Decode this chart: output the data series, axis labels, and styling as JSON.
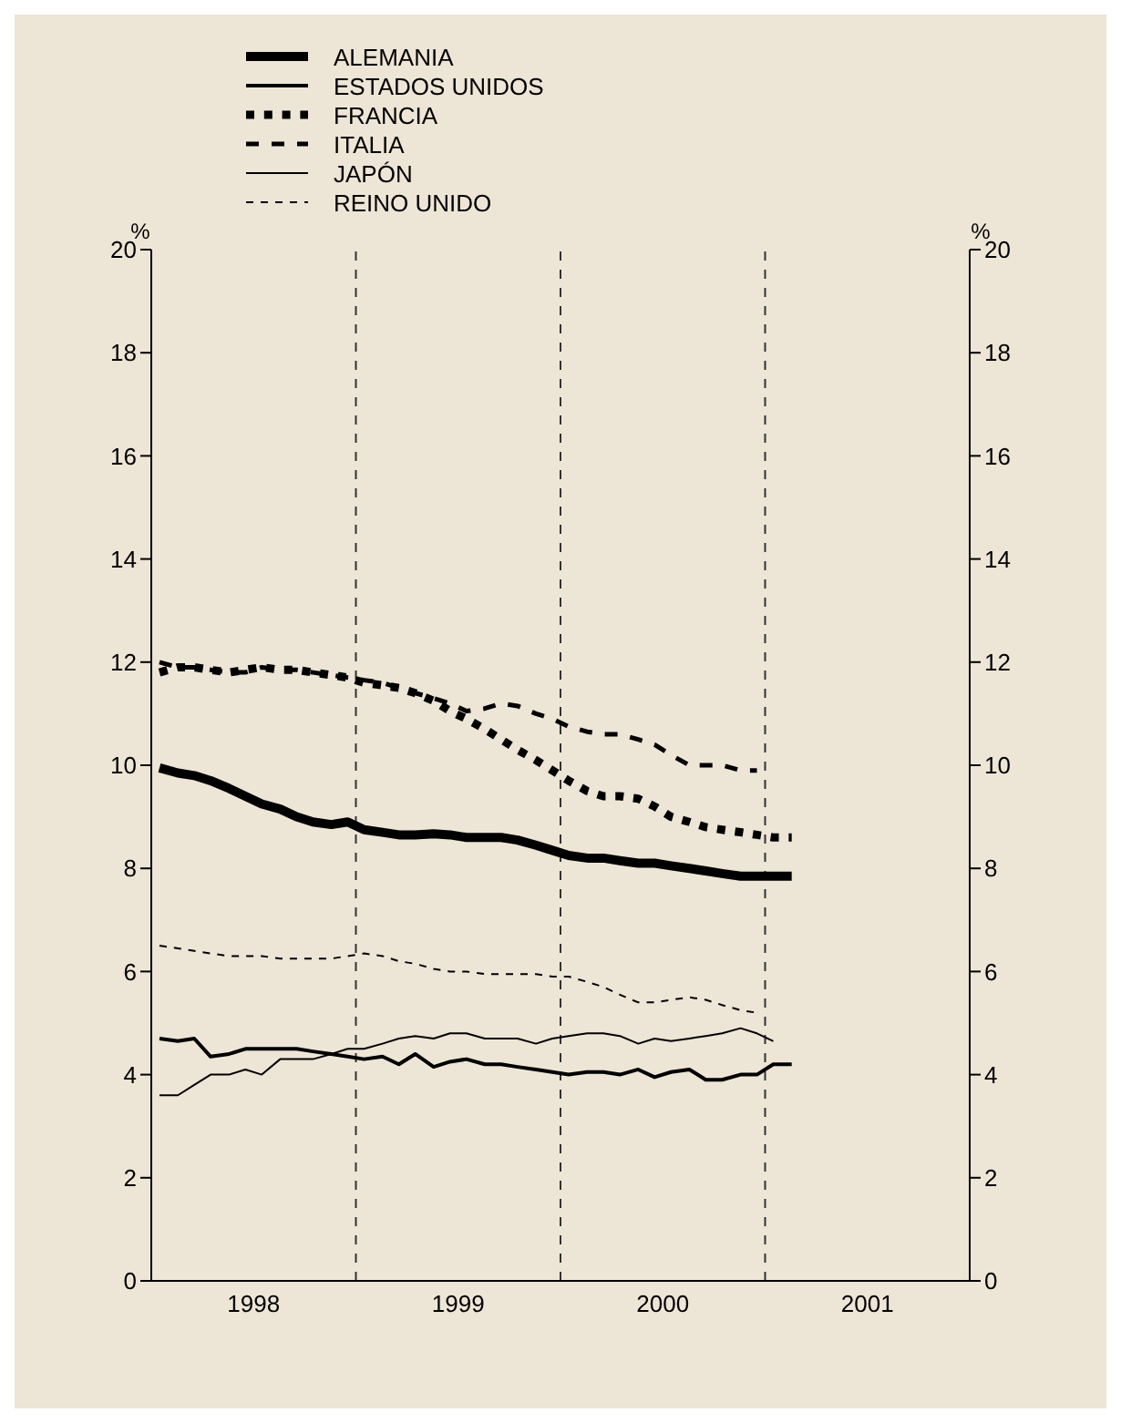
{
  "chart_data": {
    "type": "line",
    "ylabel": "%",
    "y2label": "%",
    "x": [
      1998.04,
      1998.13,
      1998.21,
      1998.29,
      1998.38,
      1998.46,
      1998.54,
      1998.63,
      1998.71,
      1998.79,
      1998.88,
      1998.96,
      1999.04,
      1999.13,
      1999.21,
      1999.29,
      1999.38,
      1999.46,
      1999.54,
      1999.63,
      1999.71,
      1999.79,
      1999.88,
      1999.96,
      2000.04,
      2000.13,
      2000.21,
      2000.29,
      2000.38,
      2000.46,
      2000.54,
      2000.63,
      2000.71,
      2000.79,
      2000.88,
      2000.96,
      2001.04,
      2001.13
    ],
    "series": [
      {
        "name": "ALEMANIA",
        "color": "#000000",
        "line_style": "solid",
        "values": [
          9.95,
          9.85,
          9.8,
          9.7,
          9.55,
          9.4,
          9.25,
          9.15,
          9.0,
          8.9,
          8.85,
          8.9,
          8.75,
          8.7,
          8.65,
          8.65,
          8.67,
          8.65,
          8.6,
          8.6,
          8.6,
          8.55,
          8.45,
          8.35,
          8.25,
          8.2,
          8.2,
          8.15,
          8.1,
          8.1,
          8.05,
          8.0,
          7.95,
          7.9,
          7.85,
          7.85,
          7.85,
          7.85
        ]
      },
      {
        "name": "ESTADOS UNIDOS",
        "color": "#000000",
        "line_style": "solid",
        "values": [
          4.7,
          4.65,
          4.7,
          4.35,
          4.4,
          4.5,
          4.5,
          4.5,
          4.5,
          4.45,
          4.4,
          4.35,
          4.3,
          4.35,
          4.2,
          4.4,
          4.15,
          4.25,
          4.3,
          4.2,
          4.2,
          4.15,
          4.1,
          4.05,
          4.0,
          4.05,
          4.05,
          4.0,
          4.1,
          3.95,
          4.05,
          4.1,
          3.9,
          3.9,
          4.0,
          4.0,
          4.2,
          4.2
        ]
      },
      {
        "name": "FRANCIA",
        "color": "#000000",
        "line_style": "dotted",
        "values": [
          11.8,
          11.9,
          11.9,
          11.85,
          11.8,
          11.85,
          11.9,
          11.85,
          11.85,
          11.8,
          11.75,
          11.7,
          11.6,
          11.55,
          11.5,
          11.4,
          11.25,
          11.05,
          10.9,
          10.7,
          10.5,
          10.3,
          10.1,
          9.9,
          9.7,
          9.5,
          9.4,
          9.4,
          9.35,
          9.2,
          9.0,
          8.9,
          8.8,
          8.75,
          8.7,
          8.65,
          8.6,
          8.6
        ]
      },
      {
        "name": "ITALIA",
        "color": "#000000",
        "line_style": "dashed",
        "values": [
          12.0,
          11.9,
          11.9,
          11.85,
          11.8,
          11.8,
          11.9,
          11.85,
          11.85,
          11.8,
          11.75,
          11.7,
          11.65,
          11.6,
          11.5,
          11.4,
          11.3,
          11.2,
          11.05,
          11.1,
          11.2,
          11.15,
          11.0,
          10.9,
          10.75,
          10.65,
          10.6,
          10.6,
          10.5,
          10.4,
          10.2,
          10.0,
          10.0,
          10.0,
          9.9,
          9.9,
          null,
          null
        ]
      },
      {
        "name": "JAPÓN",
        "color": "#000000",
        "line_style": "solid",
        "values": [
          3.6,
          3.6,
          3.8,
          4.0,
          4.0,
          4.1,
          4.0,
          4.3,
          4.3,
          4.3,
          4.4,
          4.5,
          4.5,
          4.6,
          4.7,
          4.75,
          4.7,
          4.8,
          4.8,
          4.7,
          4.7,
          4.7,
          4.6,
          4.7,
          4.75,
          4.8,
          4.8,
          4.75,
          4.6,
          4.7,
          4.65,
          4.7,
          4.75,
          4.8,
          4.9,
          4.8,
          4.65,
          null
        ]
      },
      {
        "name": "REINO UNIDO",
        "color": "#000000",
        "line_style": "dashed",
        "values": [
          6.5,
          6.45,
          6.4,
          6.35,
          6.3,
          6.3,
          6.3,
          6.25,
          6.25,
          6.25,
          6.25,
          6.3,
          6.35,
          6.3,
          6.2,
          6.15,
          6.05,
          6.0,
          6.0,
          5.95,
          5.95,
          5.95,
          5.95,
          5.9,
          5.9,
          5.8,
          5.7,
          5.55,
          5.4,
          5.4,
          5.45,
          5.5,
          5.45,
          5.35,
          5.25,
          5.2,
          null,
          null
        ]
      }
    ],
    "xlim": [
      1998,
      2002
    ],
    "xticks": [
      {
        "value": 1998.5,
        "label": "1998"
      },
      {
        "value": 1999.5,
        "label": "1999"
      },
      {
        "value": 2000.5,
        "label": "2000"
      },
      {
        "value": 2001.5,
        "label": "2001"
      }
    ],
    "ylim": [
      0,
      20
    ],
    "yticks": [
      0,
      2,
      4,
      6,
      8,
      10,
      12,
      14,
      16,
      18,
      20
    ],
    "y2lim": [
      0,
      20
    ],
    "y2ticks": [
      0,
      2,
      4,
      6,
      8,
      10,
      12,
      14,
      16,
      18,
      20
    ],
    "ref_lines": [
      {
        "axis": "x",
        "value": 1999,
        "line_style": "dashed",
        "color": "#333333"
      },
      {
        "axis": "x",
        "value": 2000,
        "line_style": "dashed",
        "color": "#333333"
      },
      {
        "axis": "x",
        "value": 2001,
        "line_style": "dashed",
        "color": "#333333"
      }
    ],
    "grid": false,
    "legend": "top",
    "marker": "none"
  }
}
